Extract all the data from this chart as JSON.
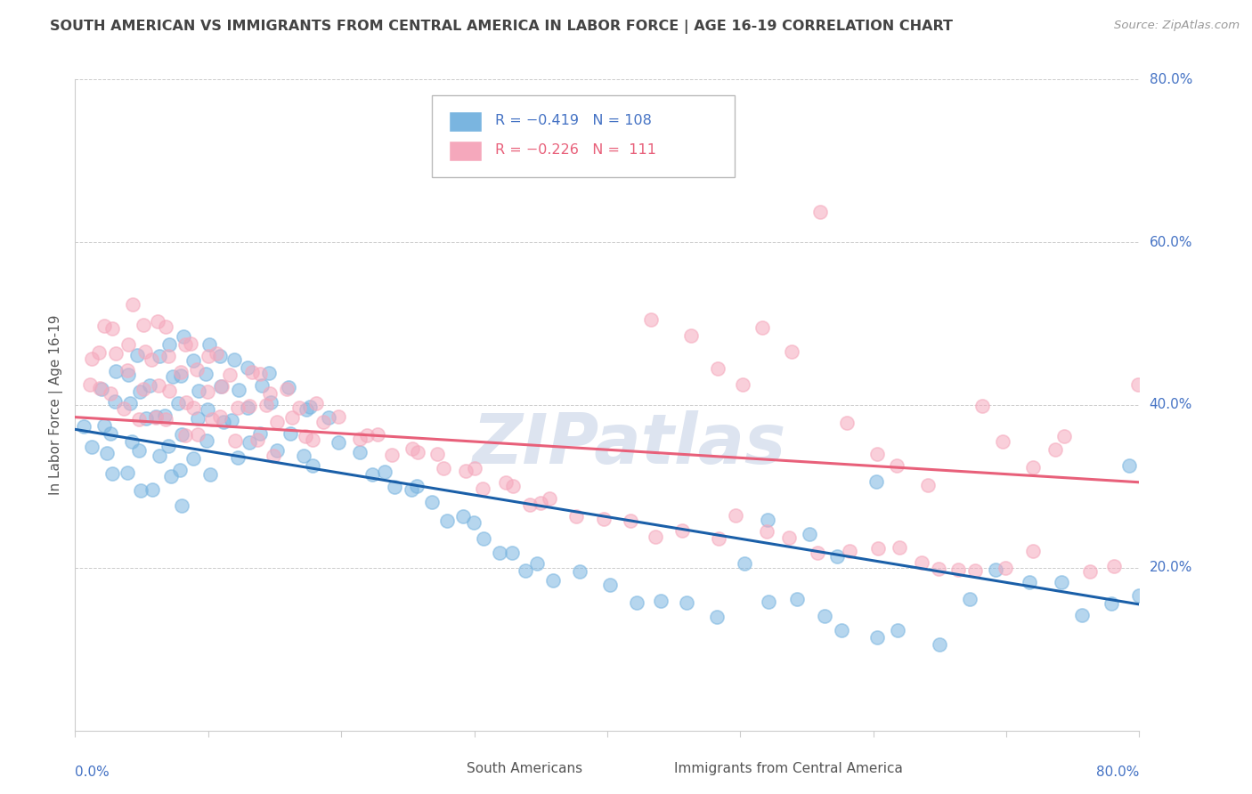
{
  "title": "SOUTH AMERICAN VS IMMIGRANTS FROM CENTRAL AMERICA IN LABOR FORCE | AGE 16-19 CORRELATION CHART",
  "source": "Source: ZipAtlas.com",
  "ylabel": "In Labor Force | Age 16-19",
  "xlim": [
    0.0,
    0.8
  ],
  "ylim": [
    0.0,
    0.8
  ],
  "yticks": [
    0.0,
    0.2,
    0.4,
    0.6,
    0.8
  ],
  "ytick_labels": [
    "",
    "20.0%",
    "40.0%",
    "60.0%",
    "80.0%"
  ],
  "xtick_labels_show": [
    "0.0%",
    "80.0%"
  ],
  "color_blue": "#7ab5e0",
  "color_blue_line": "#1a5fa8",
  "color_pink": "#f5a8bc",
  "color_pink_line": "#e8607a",
  "color_grid": "#cccccc",
  "color_title": "#444444",
  "color_axis_label": "#555555",
  "color_tick_label": "#4472c4",
  "color_source": "#999999",
  "watermark": "ZIPatlas",
  "watermark_color": "#dde4f0",
  "legend_text_blue": "R = −0.419   N = 108",
  "legend_text_pink": "R = −0.226   N =  111",
  "blue_line_x": [
    0.0,
    0.8
  ],
  "blue_line_y": [
    0.37,
    0.155
  ],
  "pink_line_x": [
    0.0,
    0.8
  ],
  "pink_line_y": [
    0.385,
    0.305
  ],
  "blue_scatter_x": [
    0.01,
    0.01,
    0.02,
    0.02,
    0.02,
    0.03,
    0.03,
    0.03,
    0.03,
    0.04,
    0.04,
    0.04,
    0.04,
    0.05,
    0.05,
    0.05,
    0.05,
    0.05,
    0.06,
    0.06,
    0.06,
    0.06,
    0.06,
    0.07,
    0.07,
    0.07,
    0.07,
    0.07,
    0.08,
    0.08,
    0.08,
    0.08,
    0.08,
    0.08,
    0.09,
    0.09,
    0.09,
    0.09,
    0.1,
    0.1,
    0.1,
    0.1,
    0.1,
    0.11,
    0.11,
    0.11,
    0.12,
    0.12,
    0.12,
    0.12,
    0.13,
    0.13,
    0.13,
    0.14,
    0.14,
    0.15,
    0.15,
    0.15,
    0.16,
    0.16,
    0.17,
    0.17,
    0.18,
    0.18,
    0.19,
    0.2,
    0.21,
    0.22,
    0.23,
    0.24,
    0.25,
    0.26,
    0.27,
    0.28,
    0.29,
    0.3,
    0.31,
    0.32,
    0.33,
    0.34,
    0.35,
    0.36,
    0.38,
    0.4,
    0.42,
    0.44,
    0.46,
    0.48,
    0.5,
    0.52,
    0.54,
    0.56,
    0.58,
    0.6,
    0.62,
    0.65,
    0.67,
    0.69,
    0.72,
    0.74,
    0.76,
    0.78,
    0.79,
    0.8,
    0.52,
    0.55,
    0.57,
    0.6
  ],
  "blue_scatter_y": [
    0.38,
    0.35,
    0.42,
    0.38,
    0.34,
    0.44,
    0.4,
    0.36,
    0.32,
    0.44,
    0.4,
    0.36,
    0.32,
    0.46,
    0.42,
    0.38,
    0.34,
    0.3,
    0.46,
    0.42,
    0.38,
    0.34,
    0.3,
    0.47,
    0.43,
    0.39,
    0.35,
    0.31,
    0.48,
    0.44,
    0.4,
    0.36,
    0.32,
    0.28,
    0.46,
    0.42,
    0.38,
    0.34,
    0.48,
    0.44,
    0.4,
    0.36,
    0.32,
    0.46,
    0.42,
    0.38,
    0.46,
    0.42,
    0.38,
    0.33,
    0.44,
    0.4,
    0.36,
    0.42,
    0.36,
    0.44,
    0.4,
    0.34,
    0.42,
    0.36,
    0.4,
    0.34,
    0.4,
    0.33,
    0.38,
    0.36,
    0.34,
    0.32,
    0.32,
    0.3,
    0.3,
    0.3,
    0.28,
    0.26,
    0.26,
    0.26,
    0.24,
    0.22,
    0.22,
    0.2,
    0.2,
    0.18,
    0.2,
    0.18,
    0.16,
    0.16,
    0.16,
    0.14,
    0.2,
    0.16,
    0.16,
    0.14,
    0.12,
    0.12,
    0.12,
    0.1,
    0.16,
    0.2,
    0.18,
    0.18,
    0.14,
    0.16,
    0.32,
    0.16,
    0.26,
    0.24,
    0.22,
    0.3
  ],
  "pink_scatter_x": [
    0.01,
    0.01,
    0.02,
    0.02,
    0.02,
    0.03,
    0.03,
    0.03,
    0.04,
    0.04,
    0.04,
    0.04,
    0.05,
    0.05,
    0.05,
    0.05,
    0.06,
    0.06,
    0.06,
    0.06,
    0.07,
    0.07,
    0.07,
    0.07,
    0.08,
    0.08,
    0.08,
    0.08,
    0.09,
    0.09,
    0.09,
    0.09,
    0.1,
    0.1,
    0.1,
    0.11,
    0.11,
    0.11,
    0.12,
    0.12,
    0.12,
    0.13,
    0.13,
    0.14,
    0.14,
    0.14,
    0.15,
    0.15,
    0.15,
    0.16,
    0.16,
    0.17,
    0.17,
    0.18,
    0.18,
    0.19,
    0.2,
    0.21,
    0.22,
    0.23,
    0.24,
    0.25,
    0.26,
    0.27,
    0.28,
    0.29,
    0.3,
    0.31,
    0.32,
    0.33,
    0.34,
    0.35,
    0.36,
    0.38,
    0.4,
    0.42,
    0.44,
    0.46,
    0.48,
    0.5,
    0.52,
    0.54,
    0.56,
    0.58,
    0.6,
    0.62,
    0.64,
    0.66,
    0.68,
    0.7,
    0.72,
    0.74,
    0.76,
    0.78,
    0.8,
    0.43,
    0.46,
    0.48,
    0.5,
    0.52,
    0.54,
    0.56,
    0.58,
    0.6,
    0.62,
    0.64,
    0.65,
    0.68,
    0.7,
    0.72,
    0.74
  ],
  "pink_scatter_y": [
    0.46,
    0.42,
    0.5,
    0.46,
    0.42,
    0.5,
    0.46,
    0.42,
    0.52,
    0.48,
    0.44,
    0.4,
    0.5,
    0.46,
    0.42,
    0.38,
    0.5,
    0.46,
    0.42,
    0.38,
    0.5,
    0.46,
    0.42,
    0.38,
    0.48,
    0.44,
    0.4,
    0.36,
    0.48,
    0.44,
    0.4,
    0.36,
    0.46,
    0.42,
    0.38,
    0.46,
    0.42,
    0.38,
    0.44,
    0.4,
    0.36,
    0.44,
    0.4,
    0.44,
    0.4,
    0.36,
    0.42,
    0.38,
    0.34,
    0.42,
    0.38,
    0.4,
    0.36,
    0.4,
    0.36,
    0.38,
    0.38,
    0.36,
    0.36,
    0.36,
    0.34,
    0.34,
    0.34,
    0.34,
    0.32,
    0.32,
    0.32,
    0.3,
    0.3,
    0.3,
    0.28,
    0.28,
    0.28,
    0.26,
    0.26,
    0.26,
    0.24,
    0.24,
    0.24,
    0.26,
    0.24,
    0.24,
    0.22,
    0.22,
    0.22,
    0.22,
    0.2,
    0.2,
    0.2,
    0.2,
    0.22,
    0.36,
    0.2,
    0.2,
    0.42,
    0.5,
    0.48,
    0.44,
    0.42,
    0.5,
    0.46,
    0.64,
    0.38,
    0.34,
    0.32,
    0.3,
    0.2,
    0.4,
    0.35,
    0.32,
    0.35
  ]
}
